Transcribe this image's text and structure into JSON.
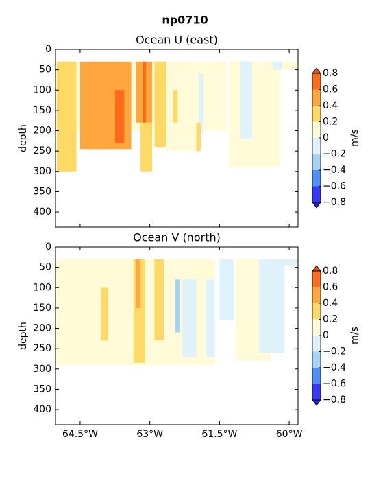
{
  "title": "np0710",
  "chart_data": [
    {
      "type": "contour",
      "title": "Ocean U (east)",
      "ylabel": "depth",
      "xlim": [
        -65.03,
        -59.81
      ],
      "ylim": [
        437,
        0
      ],
      "xticks": [
        {
          "value": -64.5,
          "label": "64.5°W"
        },
        {
          "value": -63,
          "label": "63°W"
        },
        {
          "value": -61.5,
          "label": "61.5°W"
        },
        {
          "value": -60,
          "label": "60°W"
        }
      ],
      "yticks": [
        0,
        50,
        100,
        150,
        200,
        250,
        300,
        350,
        400
      ],
      "colorbar": {
        "label": "m/s",
        "levels": [
          {
            "value": -0.8,
            "label": "−0.8"
          },
          {
            "value": -0.6,
            "label": "−0.6"
          },
          {
            "value": -0.4,
            "label": "−0.4"
          },
          {
            "value": -0.2,
            "label": "−0.2"
          },
          0.0,
          0.2,
          0.4,
          0.6,
          0.8
        ],
        "colors": [
          "#3a3af5",
          "#4f8ef2",
          "#a9d2f7",
          "#dff1fb",
          "#fffbd8",
          "#ffd966",
          "#ffa63c",
          "#ff6a1c"
        ],
        "under": "#2020d0",
        "over": "#e8501a"
      },
      "patches": [
        {
          "lon": [
            -65.03,
            -61.35
          ],
          "depth": [
            30,
            200
          ],
          "value": 0.1
        },
        {
          "lon": [
            -65.0,
            -64.58
          ],
          "depth": [
            30,
            300
          ],
          "value": 0.3
        },
        {
          "lon": [
            -64.5,
            -63.4
          ],
          "depth": [
            30,
            245
          ],
          "value": 0.5
        },
        {
          "lon": [
            -63.75,
            -63.55
          ],
          "depth": [
            100,
            230
          ],
          "value": 0.7
        },
        {
          "lon": [
            -63.3,
            -62.95
          ],
          "depth": [
            30,
            180
          ],
          "value": 0.5
        },
        {
          "lon": [
            -63.15,
            -63.08
          ],
          "depth": [
            30,
            230
          ],
          "value": 0.7
        },
        {
          "lon": [
            -63.2,
            -62.95
          ],
          "depth": [
            180,
            300
          ],
          "value": 0.3
        },
        {
          "lon": [
            -62.9,
            -62.65
          ],
          "depth": [
            30,
            240
          ],
          "value": 0.3
        },
        {
          "lon": [
            -62.65,
            -62.0
          ],
          "depth": [
            30,
            250
          ],
          "value": 0.1
        },
        {
          "lon": [
            -62.5,
            -62.4
          ],
          "depth": [
            100,
            180
          ],
          "value": 0.3
        },
        {
          "lon": [
            -61.95,
            -61.85
          ],
          "depth": [
            60,
            210
          ],
          "value": -0.1
        },
        {
          "lon": [
            -62.0,
            -61.9
          ],
          "depth": [
            180,
            250
          ],
          "value": 0.3
        },
        {
          "lon": [
            -61.3,
            -60.2
          ],
          "depth": [
            30,
            290
          ],
          "value": 0.1
        },
        {
          "lon": [
            -61.05,
            -60.8
          ],
          "depth": [
            30,
            220
          ],
          "value": -0.1
        },
        {
          "lon": [
            -60.35,
            -60.15
          ],
          "depth": [
            30,
            50
          ],
          "value": -0.1
        },
        {
          "lon": [
            -60.15,
            -59.81
          ],
          "depth": [
            30,
            50
          ],
          "value": 0.1
        }
      ]
    },
    {
      "type": "contour",
      "title": "Ocean V (north)",
      "ylabel": "depth",
      "xlim": [
        -65.03,
        -59.81
      ],
      "ylim": [
        437,
        0
      ],
      "xticks": [
        {
          "value": -64.5,
          "label": "64.5°W"
        },
        {
          "value": -63,
          "label": "63°W"
        },
        {
          "value": -61.5,
          "label": "61.5°W"
        },
        {
          "value": -60,
          "label": "60°W"
        }
      ],
      "yticks": [
        0,
        50,
        100,
        150,
        200,
        250,
        300,
        350,
        400
      ],
      "colorbar": {
        "label": "m/s",
        "levels": [
          {
            "value": -0.8,
            "label": "−0.8"
          },
          {
            "value": -0.6,
            "label": "−0.6"
          },
          {
            "value": -0.4,
            "label": "−0.4"
          },
          {
            "value": -0.2,
            "label": "−0.2"
          },
          0.0,
          0.2,
          0.4,
          0.6,
          0.8
        ],
        "colors": [
          "#3a3af5",
          "#4f8ef2",
          "#a9d2f7",
          "#dff1fb",
          "#fffbd8",
          "#ffd966",
          "#ffa63c",
          "#ff6a1c"
        ],
        "under": "#2020d0",
        "over": "#e8501a"
      },
      "patches": [
        {
          "lon": [
            -65.03,
            -61.6
          ],
          "depth": [
            30,
            290
          ],
          "value": 0.1
        },
        {
          "lon": [
            -64.05,
            -63.9
          ],
          "depth": [
            100,
            230
          ],
          "value": 0.3
        },
        {
          "lon": [
            -63.35,
            -63.1
          ],
          "depth": [
            30,
            285
          ],
          "value": 0.3
        },
        {
          "lon": [
            -63.3,
            -63.2
          ],
          "depth": [
            30,
            150
          ],
          "value": 0.5
        },
        {
          "lon": [
            -62.9,
            -62.7
          ],
          "depth": [
            30,
            230
          ],
          "value": 0.3
        },
        {
          "lon": [
            -62.3,
            -61.6
          ],
          "depth": [
            80,
            270
          ],
          "value": -0.1
        },
        {
          "lon": [
            -62.45,
            -62.35
          ],
          "depth": [
            80,
            210
          ],
          "value": -0.3
        },
        {
          "lon": [
            -62.0,
            -61.8
          ],
          "depth": [
            80,
            270
          ],
          "value": 0.1
        },
        {
          "lon": [
            -61.5,
            -61.2
          ],
          "depth": [
            30,
            180
          ],
          "value": -0.1
        },
        {
          "lon": [
            -61.15,
            -60.4
          ],
          "depth": [
            30,
            280
          ],
          "value": 0.1
        },
        {
          "lon": [
            -60.65,
            -60.1
          ],
          "depth": [
            30,
            260
          ],
          "value": -0.1
        },
        {
          "lon": [
            -60.35,
            -59.81
          ],
          "depth": [
            30,
            45
          ],
          "value": -0.1
        }
      ]
    }
  ]
}
